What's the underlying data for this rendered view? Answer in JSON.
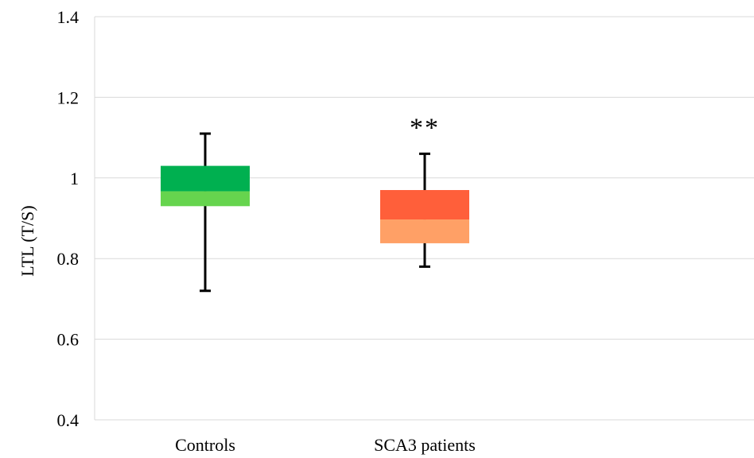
{
  "chart_data": {
    "type": "box",
    "title": "",
    "xlabel": "",
    "ylabel": "LTL (T/S)",
    "ylim": [
      0.4,
      1.4
    ],
    "yticks": [
      0.4,
      0.6,
      0.8,
      1,
      1.2,
      1.4
    ],
    "ytick_labels": [
      "0.4",
      "0.6",
      "0.8",
      "1",
      "1.2",
      "1.4"
    ],
    "grid": true,
    "categories": [
      "Controls",
      "SCA3 patients"
    ],
    "boxes": [
      {
        "category": "Controls",
        "min": 0.72,
        "q1": 0.93,
        "median": 0.967,
        "q3": 1.03,
        "max": 1.11,
        "upper_color": "#00b050",
        "lower_color": "#66d44e",
        "annotation": ""
      },
      {
        "category": "SCA3 patients",
        "min": 0.78,
        "q1": 0.838,
        "median": 0.897,
        "q3": 0.97,
        "max": 1.06,
        "upper_color": "#ff5f3a",
        "lower_color": "#ffa066",
        "annotation": "**"
      }
    ]
  }
}
